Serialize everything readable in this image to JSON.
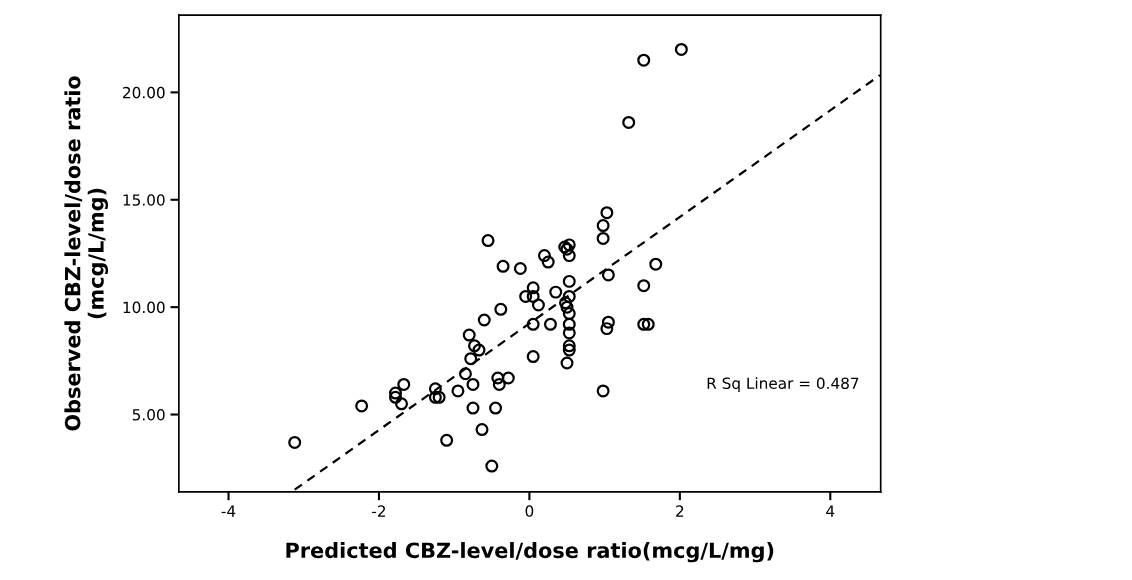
{
  "chart_data": {
    "type": "scatter",
    "xlabel": "Predicted CBZ-level/dose ratio(mcg/L/mg)",
    "ylabel": "Observed CBZ-level/dose ratio\n(mcg/L/mg)",
    "xlim": [
      -4.66,
      4.67
    ],
    "ylim": [
      1.4,
      23.6
    ],
    "xticks": [
      -4,
      -2,
      0,
      2,
      4
    ],
    "yticks": [
      {
        "value": 5,
        "label": "5.00"
      },
      {
        "value": 10,
        "label": "10.00"
      },
      {
        "value": 15,
        "label": "15.00"
      },
      {
        "value": 20,
        "label": "20.00"
      }
    ],
    "grid": false,
    "marker": "circle",
    "annotations": [
      "R Sq Linear = 0.487"
    ],
    "series": [
      {
        "color": "#000000",
        "x": [
          -3.12,
          -2.23,
          -1.78,
          -1.78,
          -1.67,
          -1.7,
          -1.25,
          -1.25,
          -1.2,
          -1.1,
          -0.95,
          -0.85,
          -0.8,
          -0.78,
          -0.75,
          -0.73,
          -0.75,
          -0.67,
          -0.6,
          -0.55,
          -0.5,
          -0.45,
          -0.42,
          -0.4,
          -0.38,
          -0.35,
          -0.63,
          -0.28,
          -0.12,
          -0.05,
          0.05,
          0.05,
          0.05,
          0.05,
          0.12,
          0.2,
          0.25,
          0.28,
          0.35,
          0.47,
          0.5,
          0.53,
          0.53,
          0.48,
          0.5,
          0.53,
          0.53,
          0.53,
          0.53,
          0.53,
          0.53,
          0.53,
          0.5,
          0.98,
          0.98,
          1.03,
          1.05,
          1.05,
          1.03,
          0.98,
          1.32,
          1.52,
          2.02,
          1.52,
          1.52,
          1.58,
          1.68
        ],
        "values": [
          3.7,
          5.4,
          6.0,
          5.8,
          6.4,
          5.5,
          6.2,
          5.8,
          5.8,
          3.8,
          6.1,
          6.9,
          8.7,
          7.6,
          6.4,
          8.2,
          5.3,
          8.0,
          9.4,
          13.1,
          2.6,
          5.3,
          6.7,
          6.4,
          9.9,
          11.9,
          4.3,
          6.7,
          11.8,
          10.5,
          10.9,
          10.5,
          9.2,
          7.7,
          10.1,
          12.4,
          12.1,
          9.2,
          10.7,
          12.8,
          12.7,
          12.9,
          12.4,
          10.2,
          10.0,
          11.2,
          10.5,
          9.7,
          9.2,
          8.8,
          8.2,
          8.0,
          7.4,
          13.8,
          13.2,
          14.4,
          11.5,
          9.3,
          9.0,
          6.1,
          18.6,
          21.5,
          22.0,
          11.0,
          9.2,
          9.2,
          12.0
        ]
      },
      {
        "type": "line",
        "color": "#000000",
        "line_style": "dashed",
        "marker": "none",
        "x": [
          -3.12,
          4.66
        ],
        "values": [
          1.5,
          20.8
        ]
      }
    ]
  }
}
